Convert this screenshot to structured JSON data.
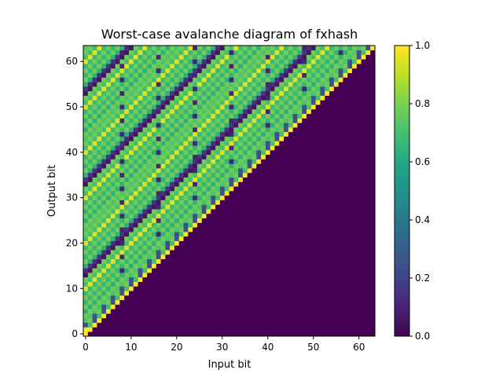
{
  "chart_data": {
    "type": "heatmap",
    "title": "Worst-case avalanche diagram of fxhash",
    "xlabel": "Input bit",
    "ylabel": "Output bit",
    "rows": 64,
    "cols": 64,
    "xlim": [
      -0.5,
      63.5
    ],
    "ylim": [
      -0.5,
      63.5
    ],
    "x_ticks": [
      0,
      10,
      20,
      30,
      40,
      50,
      60
    ],
    "y_ticks": [
      0,
      10,
      20,
      30,
      40,
      50,
      60
    ],
    "colorbar_ticks": [
      "0.0",
      "0.2",
      "0.4",
      "0.6",
      "0.8",
      "1.0"
    ],
    "value_range": [
      0,
      1
    ],
    "colormap": "viridis",
    "structure": {
      "zero_region": "output bit < input bit (lower-right triangle is 0.0)",
      "diagonal": "output bit == input bit is 1.0",
      "upper_region": "values mostly 0.5-0.8 with checkerboard pattern and periodic dark diagonal bands"
    }
  }
}
